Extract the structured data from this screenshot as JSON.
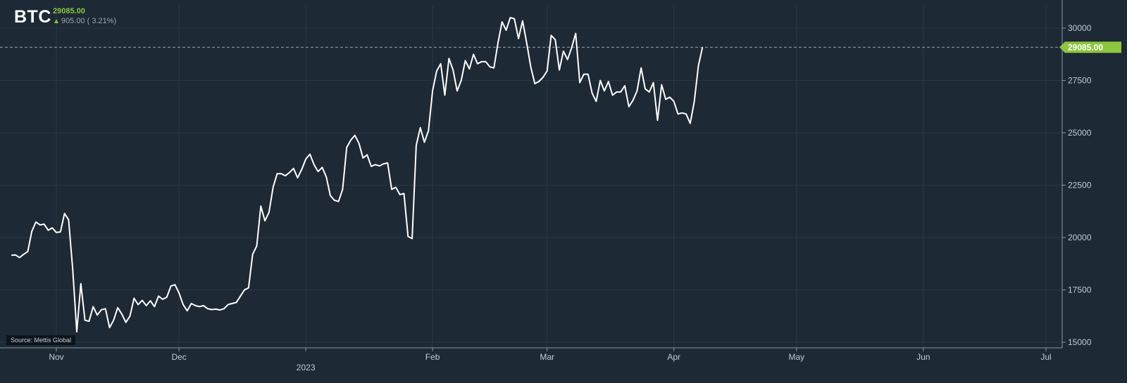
{
  "header": {
    "symbol": "BTC",
    "last_price": "29085.00",
    "change": "905.00",
    "change_pct": "( 3.21%)",
    "trend_icon": "up-arrow-icon"
  },
  "source_label": "Source: Mettis Global",
  "price_tag": "29085.00",
  "colors": {
    "background": "#1d2935",
    "line": "#ffffff",
    "accent_up": "#8dc63f",
    "grid": "#2b3845"
  },
  "chart_data": {
    "type": "line",
    "title": "",
    "xlabel": "",
    "ylabel": "",
    "ylim": [
      15000,
      31000
    ],
    "grid": true,
    "y_ticks": [
      "15000",
      "17500",
      "20000",
      "22500",
      "25000",
      "27500",
      "30000"
    ],
    "x_ticks": [
      {
        "label": "Nov",
        "date": "2022-11-01"
      },
      {
        "label": "Dec",
        "date": "2022-12-01"
      },
      {
        "label": "2023",
        "date": "2023-01-01"
      },
      {
        "label": "Feb",
        "date": "2023-02-01"
      },
      {
        "label": "Mar",
        "date": "2023-03-01"
      },
      {
        "label": "Apr",
        "date": "2023-04-01"
      },
      {
        "label": "May",
        "date": "2023-05-01"
      },
      {
        "label": "Jun",
        "date": "2023-06-01"
      },
      {
        "label": "Jul",
        "date": "2023-07-01"
      }
    ],
    "reference_value": 29085,
    "series": [
      {
        "points": [
          [
            "2022-10-21",
            19150
          ],
          [
            "2022-10-22",
            19170
          ],
          [
            "2022-10-23",
            19040
          ],
          [
            "2022-10-24",
            19200
          ],
          [
            "2022-10-25",
            19330
          ],
          [
            "2022-10-26",
            20300
          ],
          [
            "2022-10-27",
            20740
          ],
          [
            "2022-10-28",
            20600
          ],
          [
            "2022-10-29",
            20640
          ],
          [
            "2022-10-30",
            20350
          ],
          [
            "2022-10-31",
            20460
          ],
          [
            "2022-11-01",
            20240
          ],
          [
            "2022-11-02",
            20270
          ],
          [
            "2022-11-03",
            21150
          ],
          [
            "2022-11-04",
            20850
          ],
          [
            "2022-11-05",
            18500
          ],
          [
            "2022-11-06",
            15500
          ],
          [
            "2022-11-07",
            17800
          ],
          [
            "2022-11-08",
            16050
          ],
          [
            "2022-11-09",
            16000
          ],
          [
            "2022-11-10",
            16700
          ],
          [
            "2022-11-11",
            16300
          ],
          [
            "2022-11-12",
            16550
          ],
          [
            "2022-11-13",
            16600
          ],
          [
            "2022-11-14",
            15700
          ],
          [
            "2022-11-15",
            16050
          ],
          [
            "2022-11-16",
            16650
          ],
          [
            "2022-11-17",
            16350
          ],
          [
            "2022-11-18",
            15950
          ],
          [
            "2022-11-19",
            16250
          ],
          [
            "2022-11-20",
            17100
          ],
          [
            "2022-11-21",
            16800
          ],
          [
            "2022-11-22",
            17000
          ],
          [
            "2022-11-23",
            16750
          ],
          [
            "2022-11-24",
            16980
          ],
          [
            "2022-11-25",
            16700
          ],
          [
            "2022-11-26",
            17200
          ],
          [
            "2022-11-27",
            17050
          ],
          [
            "2022-11-28",
            17150
          ],
          [
            "2022-11-29",
            17680
          ],
          [
            "2022-11-30",
            17750
          ],
          [
            "2022-12-01",
            17350
          ],
          [
            "2022-12-02",
            16800
          ],
          [
            "2022-12-03",
            16500
          ],
          [
            "2022-12-04",
            16850
          ],
          [
            "2022-12-05",
            16750
          ],
          [
            "2022-12-06",
            16700
          ],
          [
            "2022-12-07",
            16750
          ],
          [
            "2022-12-08",
            16600
          ],
          [
            "2022-12-09",
            16560
          ],
          [
            "2022-12-10",
            16580
          ],
          [
            "2022-12-11",
            16540
          ],
          [
            "2022-12-12",
            16600
          ],
          [
            "2022-12-13",
            16800
          ],
          [
            "2022-12-14",
            16850
          ],
          [
            "2022-12-15",
            16900
          ],
          [
            "2022-12-16",
            17200
          ],
          [
            "2022-12-17",
            17500
          ],
          [
            "2022-12-18",
            17600
          ],
          [
            "2022-12-19",
            19200
          ],
          [
            "2022-12-20",
            19600
          ],
          [
            "2022-12-21",
            21500
          ],
          [
            "2022-12-22",
            20800
          ],
          [
            "2022-12-23",
            21200
          ],
          [
            "2022-12-24",
            22400
          ],
          [
            "2022-12-25",
            23050
          ],
          [
            "2022-12-26",
            23050
          ],
          [
            "2022-12-27",
            22950
          ],
          [
            "2022-12-28",
            23100
          ],
          [
            "2022-12-29",
            23300
          ],
          [
            "2022-12-30",
            22850
          ],
          [
            "2022-12-31",
            23250
          ],
          [
            "2023-01-01",
            23750
          ],
          [
            "2023-01-02",
            23980
          ],
          [
            "2023-01-03",
            23480
          ],
          [
            "2023-01-04",
            23150
          ],
          [
            "2023-01-05",
            23350
          ],
          [
            "2023-01-06",
            22900
          ],
          [
            "2023-01-07",
            22000
          ],
          [
            "2023-01-08",
            21780
          ],
          [
            "2023-01-09",
            21720
          ],
          [
            "2023-01-10",
            22300
          ],
          [
            "2023-01-11",
            24300
          ],
          [
            "2023-01-12",
            24650
          ],
          [
            "2023-01-13",
            24880
          ],
          [
            "2023-01-14",
            24500
          ],
          [
            "2023-01-15",
            23800
          ],
          [
            "2023-01-16",
            23950
          ],
          [
            "2023-01-17",
            23400
          ],
          [
            "2023-01-18",
            23480
          ],
          [
            "2023-01-19",
            23420
          ],
          [
            "2023-01-20",
            23520
          ],
          [
            "2023-01-21",
            23560
          ],
          [
            "2023-01-22",
            22300
          ],
          [
            "2023-01-23",
            22400
          ],
          [
            "2023-01-24",
            22050
          ],
          [
            "2023-01-25",
            22100
          ],
          [
            "2023-01-26",
            20050
          ],
          [
            "2023-01-27",
            19950
          ],
          [
            "2023-01-28",
            24400
          ],
          [
            "2023-01-29",
            25250
          ],
          [
            "2023-01-30",
            24550
          ],
          [
            "2023-01-31",
            25100
          ],
          [
            "2023-02-01",
            27000
          ],
          [
            "2023-02-02",
            27950
          ],
          [
            "2023-02-03",
            28300
          ],
          [
            "2023-02-04",
            26800
          ],
          [
            "2023-02-05",
            28550
          ],
          [
            "2023-02-06",
            28000
          ],
          [
            "2023-02-07",
            27000
          ],
          [
            "2023-02-08",
            27500
          ],
          [
            "2023-02-09",
            28450
          ],
          [
            "2023-02-10",
            28050
          ],
          [
            "2023-02-11",
            28750
          ],
          [
            "2023-02-12",
            28300
          ],
          [
            "2023-02-13",
            28400
          ],
          [
            "2023-02-14",
            28400
          ],
          [
            "2023-02-15",
            28150
          ],
          [
            "2023-02-16",
            28100
          ],
          [
            "2023-02-17",
            29300
          ],
          [
            "2023-02-18",
            30300
          ],
          [
            "2023-02-19",
            29900
          ],
          [
            "2023-02-20",
            30500
          ],
          [
            "2023-02-21",
            30450
          ],
          [
            "2023-02-22",
            29500
          ],
          [
            "2023-02-23",
            30350
          ],
          [
            "2023-02-24",
            29300
          ],
          [
            "2023-02-25",
            28150
          ],
          [
            "2023-02-26",
            27350
          ],
          [
            "2023-02-27",
            27450
          ],
          [
            "2023-02-28",
            27650
          ],
          [
            "2023-03-01",
            27950
          ],
          [
            "2023-03-02",
            29650
          ],
          [
            "2023-03-03",
            29450
          ],
          [
            "2023-03-04",
            28000
          ],
          [
            "2023-03-05",
            28900
          ],
          [
            "2023-03-06",
            28500
          ],
          [
            "2023-03-07",
            29050
          ],
          [
            "2023-03-08",
            29750
          ],
          [
            "2023-03-09",
            27400
          ],
          [
            "2023-03-10",
            27800
          ],
          [
            "2023-03-11",
            27800
          ],
          [
            "2023-03-12",
            26900
          ],
          [
            "2023-03-13",
            26500
          ],
          [
            "2023-03-14",
            27500
          ],
          [
            "2023-03-15",
            27000
          ],
          [
            "2023-03-16",
            27450
          ],
          [
            "2023-03-17",
            26800
          ],
          [
            "2023-03-18",
            26950
          ],
          [
            "2023-03-19",
            26950
          ],
          [
            "2023-03-20",
            27250
          ],
          [
            "2023-03-21",
            26250
          ],
          [
            "2023-03-22",
            26550
          ],
          [
            "2023-03-23",
            27000
          ],
          [
            "2023-03-24",
            28100
          ],
          [
            "2023-03-25",
            27100
          ],
          [
            "2023-03-26",
            26950
          ],
          [
            "2023-03-27",
            27400
          ],
          [
            "2023-03-28",
            25600
          ],
          [
            "2023-03-29",
            27300
          ],
          [
            "2023-03-30",
            26600
          ],
          [
            "2023-03-31",
            26700
          ],
          [
            "2023-04-01",
            26500
          ],
          [
            "2023-04-02",
            25900
          ],
          [
            "2023-04-03",
            25950
          ],
          [
            "2023-04-04",
            25900
          ],
          [
            "2023-04-05",
            25450
          ],
          [
            "2023-04-06",
            26500
          ],
          [
            "2023-04-07",
            28200
          ],
          [
            "2023-04-08",
            29085
          ]
        ]
      }
    ]
  }
}
